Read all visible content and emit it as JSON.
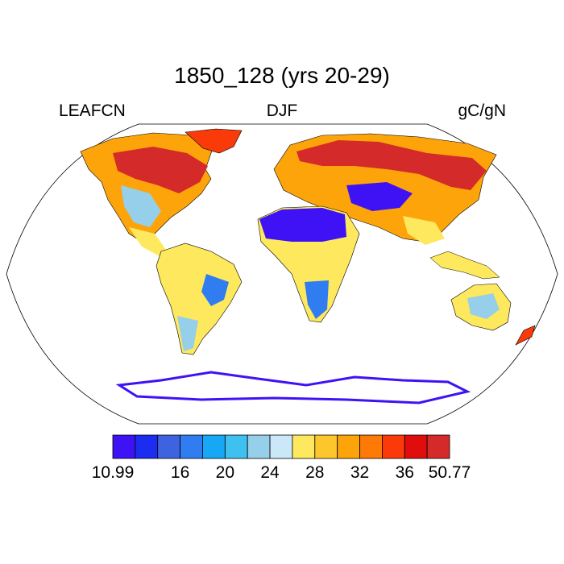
{
  "title": "1850_128 (yrs 20-29)",
  "left_label": "LEAFCN",
  "center_label": "DJF",
  "right_label": "gC/gN",
  "colorbar": {
    "colors": [
      "#3f12f5",
      "#1c2cf0",
      "#3e63e0",
      "#2f7df0",
      "#16a7f5",
      "#3ec1f0",
      "#96cfea",
      "#cbe8f8",
      "#fde85e",
      "#fdc72b",
      "#fda40a",
      "#fd7a06",
      "#fb3a09",
      "#e10d0d",
      "#d42a2a"
    ],
    "tick_labels": [
      "10.99",
      "16",
      "20",
      "24",
      "28",
      "32",
      "36",
      "50.77"
    ]
  },
  "map_colors": {
    "very_high": "#d42a2a",
    "high": "#fb3a09",
    "orange": "#fda40a",
    "yellow": "#fde85e",
    "light_blue": "#96cfea",
    "mid_blue": "#2f7df0",
    "blue": "#3f12f5"
  }
}
